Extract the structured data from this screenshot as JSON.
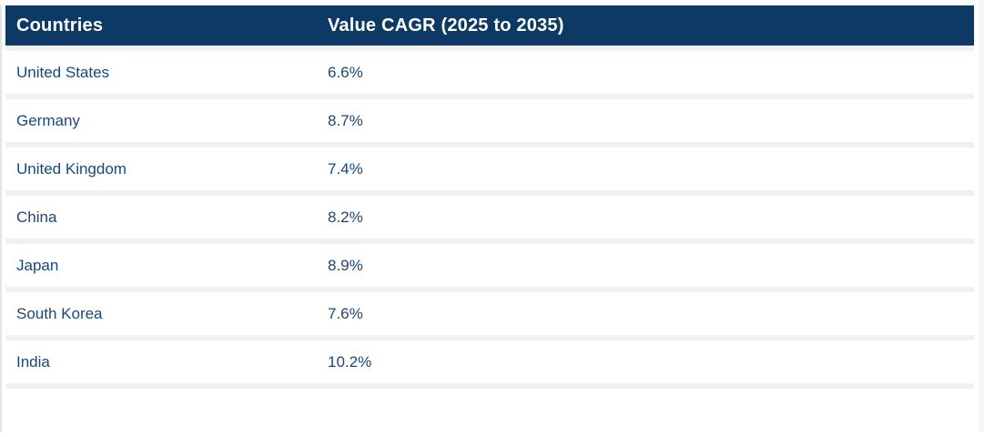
{
  "chart_data": {
    "type": "table",
    "title": "",
    "columns": [
      "Countries",
      "Value CAGR (2025 to 2035)"
    ],
    "rows": [
      {
        "country": "United States",
        "value": "6.6%"
      },
      {
        "country": "Germany",
        "value": "8.7%"
      },
      {
        "country": "United Kingdom",
        "value": "7.4%"
      },
      {
        "country": "China",
        "value": "8.2%"
      },
      {
        "country": "Japan",
        "value": "8.9%"
      },
      {
        "country": "South Korea",
        "value": "7.6%"
      },
      {
        "country": "India",
        "value": "10.2%"
      }
    ]
  },
  "colors": {
    "header_bg": "#0c3a64",
    "header_text": "#ffffff",
    "row_bg": "#ffffff",
    "row_text": "#17477f",
    "separator": "#f1f1f4"
  }
}
